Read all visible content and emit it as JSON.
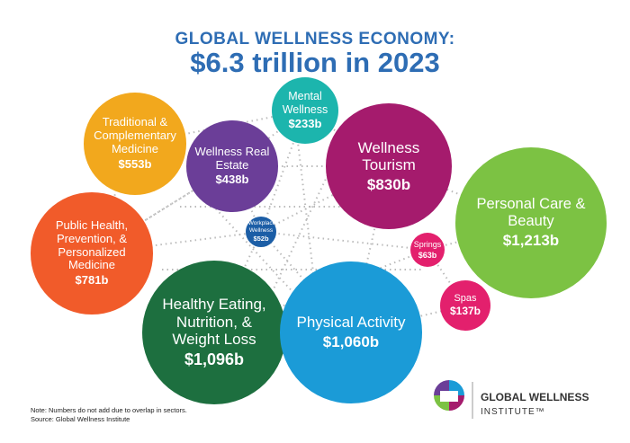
{
  "chart_data": {
    "type": "bubble",
    "title": "GLOBAL WELLNESS ECONOMY:",
    "subtitle": "$6.3 trillion in 2023",
    "categories": [
      "Mental Wellness",
      "Traditional & Complementary Medicine",
      "Wellness Real Estate",
      "Wellness Tourism",
      "Personal Care & Beauty",
      "Public Health, Prevention, & Personalized Medicine",
      "Workplace Wellness",
      "Springs",
      "Spas",
      "Healthy Eating, Nutrition, & Weight Loss",
      "Physical Activity"
    ],
    "values": [
      233,
      553,
      438,
      830,
      1213,
      781,
      52,
      63,
      137,
      1096,
      1060
    ],
    "value_labels": [
      "$233b",
      "$553b",
      "$438b",
      "$830b",
      "$1,213b",
      "$781b",
      "$52b",
      "$63b",
      "$137b",
      "$1,096b",
      "$1,060b"
    ],
    "colors": [
      "#1cb5ad",
      "#f2a81d",
      "#6b3e98",
      "#a51b6d",
      "#7cc243",
      "#f15b2a",
      "#1c5ea6",
      "#e3206d",
      "#e3206d",
      "#1d6f3f",
      "#1b9bd7"
    ],
    "note": "Note: Numbers do not add due to overlap in sectors.",
    "source": "Source: Global Wellness Institute"
  },
  "logo": {
    "name": "GLOBAL WELLNESS",
    "sub": "INSTITUTE™"
  }
}
